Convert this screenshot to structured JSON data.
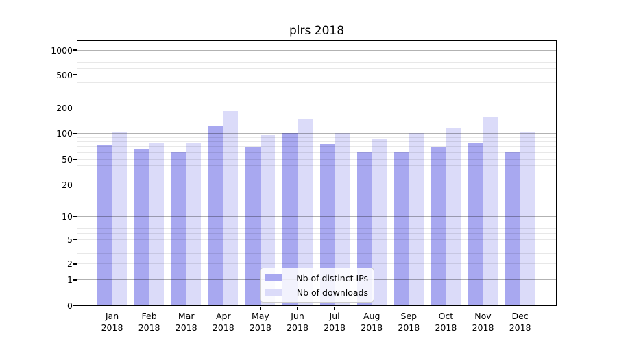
{
  "chart_data": {
    "type": "bar",
    "title": "plrs 2018",
    "xlabel": "",
    "ylabel": "",
    "yscale": "symlog (linear 0-1, logarithmic above 1)",
    "ylim": [
      0,
      1300
    ],
    "grid": true,
    "legend_position": "lower center, inside plot",
    "yticks": [
      0,
      1,
      2,
      5,
      10,
      20,
      50,
      100,
      200,
      500,
      1000
    ],
    "categories": [
      "Jan",
      "Feb",
      "Mar",
      "Apr",
      "May",
      "Jun",
      "Jul",
      "Aug",
      "Sep",
      "Oct",
      "Nov",
      "Dec"
    ],
    "x_year_label": "2018",
    "series": [
      {
        "name": "Nb of distinct IPs",
        "color": "#a8a8f0",
        "values": [
          74,
          66,
          60,
          122,
          70,
          100,
          75,
          61,
          62,
          70,
          76,
          62
        ]
      },
      {
        "name": "Nb of downloads",
        "color": "#dbdbf9",
        "values": [
          102,
          76,
          78,
          182,
          95,
          145,
          101,
          87,
          101,
          118,
          157,
          105
        ]
      }
    ]
  }
}
